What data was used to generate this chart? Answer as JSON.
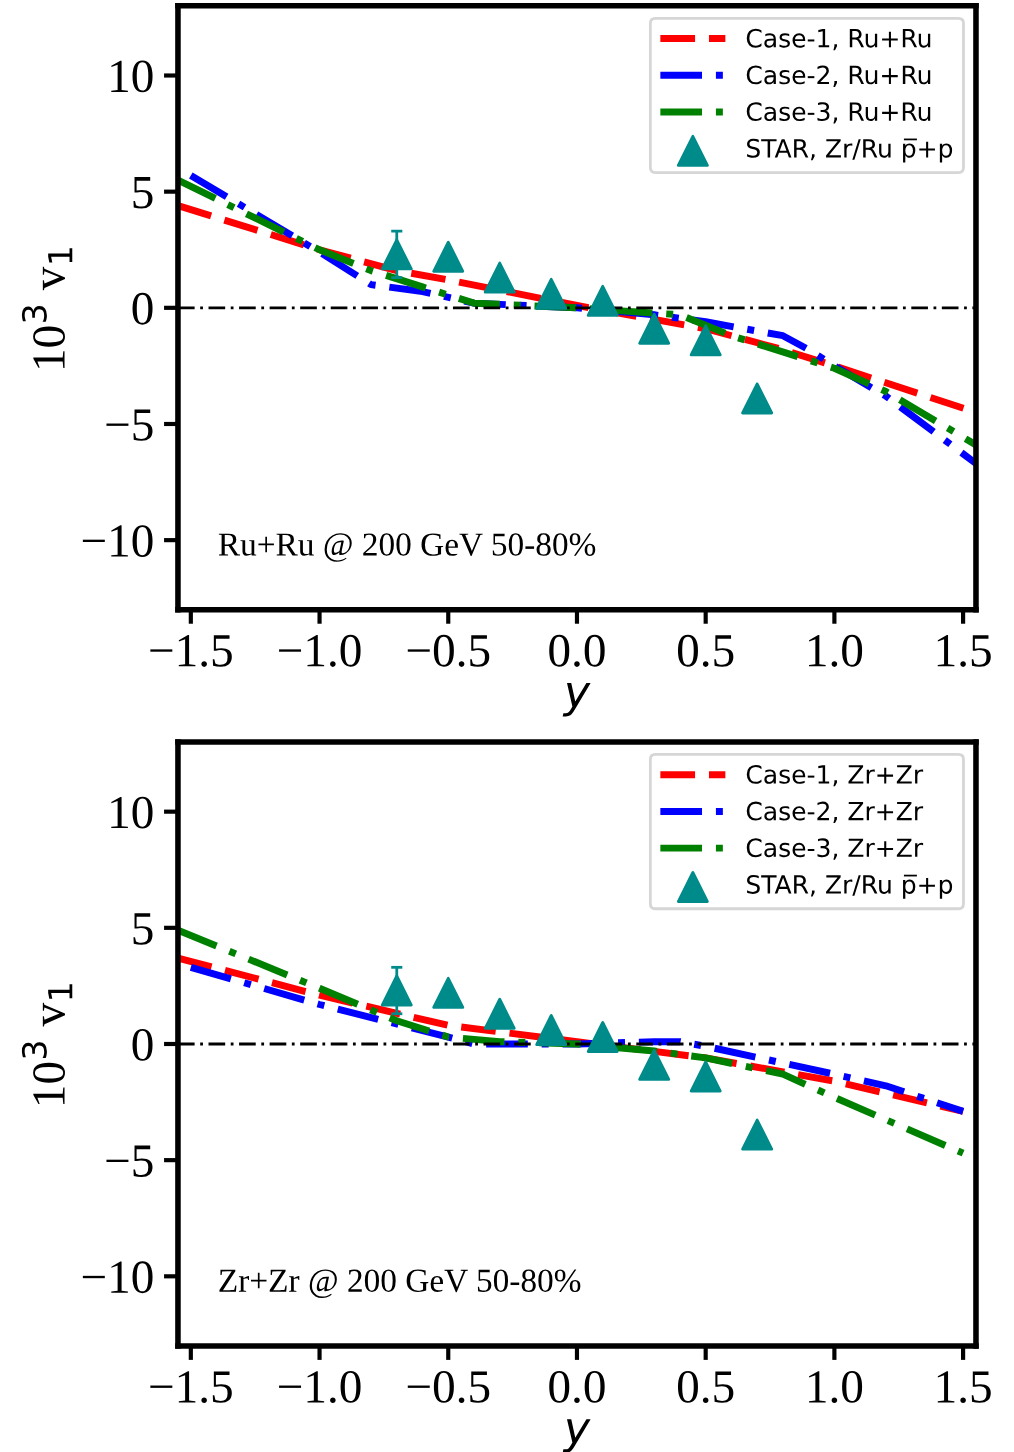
{
  "chart_data": [
    {
      "type": "line",
      "xlabel": "y",
      "ylabel": "10$^{3}$ v$_{1}$",
      "annotations": [
        "Ru+Ru @ 200 GeV 50-80%"
      ],
      "xlim": [
        -1.55,
        1.55
      ],
      "ylim": [
        -13,
        13
      ],
      "xticks": [
        {
          "value": -1.5,
          "label": "−1.5"
        },
        {
          "value": -1.0,
          "label": "−1.0"
        },
        {
          "value": -0.5,
          "label": "−0.5"
        },
        {
          "value": 0.0,
          "label": "0.0"
        },
        {
          "value": 0.5,
          "label": "0.5"
        },
        {
          "value": 1.0,
          "label": "1.0"
        },
        {
          "value": 1.5,
          "label": "1.5"
        }
      ],
      "yticks": [
        -10,
        -5,
        0,
        5,
        10
      ],
      "legend": "top right",
      "grid": false,
      "ref_lines": [
        {
          "axis": "y",
          "value": 0,
          "color": "#000000",
          "line_style": "dashdot"
        }
      ],
      "series": [
        {
          "name": "Case-1, Ru+Ru",
          "color": "#ff0000",
          "line_style": "dashed",
          "marker": "none",
          "x": [
            -1.55,
            -1.0,
            -0.7,
            -0.5,
            0.0,
            0.5,
            0.8,
            1.0,
            1.55
          ],
          "values": [
            4.4,
            2.5,
            1.6,
            1.2,
            0.1,
            -0.9,
            -1.8,
            -2.5,
            -4.5
          ]
        },
        {
          "name": "Case-2, Ru+Ru",
          "color": "#0000ff",
          "line_style": "dashdot",
          "marker": "none",
          "x": [
            -1.5,
            -1.0,
            -0.8,
            -0.6,
            -0.4,
            0.0,
            0.3,
            0.5,
            0.8,
            0.9,
            1.0,
            1.2,
            1.55
          ],
          "values": [
            5.7,
            2.4,
            1.0,
            0.7,
            0.2,
            0.0,
            -0.3,
            -0.6,
            -1.2,
            -1.8,
            -2.5,
            -3.8,
            -6.7
          ]
        },
        {
          "name": "Case-3, Ru+Ru",
          "color": "#008000",
          "line_style": "dashdot",
          "marker": "none",
          "x": [
            -1.55,
            -1.0,
            -0.8,
            -0.6,
            -0.4,
            -0.2,
            0.0,
            0.4,
            0.6,
            1.0,
            1.2,
            1.55
          ],
          "values": [
            5.5,
            2.5,
            1.6,
            0.9,
            0.2,
            0.1,
            0.0,
            -0.3,
            -1.2,
            -2.6,
            -3.6,
            -5.9
          ]
        },
        {
          "name": "STAR, Zr/Ru p̅+p",
          "type": "scatter",
          "color": "#008b8b",
          "marker": "triangle",
          "x": [
            -0.7,
            -0.5,
            -0.3,
            -0.1,
            0.1,
            0.3,
            0.5,
            0.7
          ],
          "values": [
            2.3,
            2.2,
            1.3,
            0.6,
            0.3,
            -0.9,
            -1.4,
            -3.9
          ],
          "errors": [
            1.0,
            null,
            null,
            null,
            null,
            null,
            null,
            null
          ]
        }
      ]
    },
    {
      "type": "line",
      "xlabel": "y",
      "ylabel": "10$^{3}$ v$_{1}$",
      "annotations": [
        "Zr+Zr @ 200 GeV 50-80%"
      ],
      "xlim": [
        -1.55,
        1.55
      ],
      "ylim": [
        -13,
        13
      ],
      "xticks": [
        {
          "value": -1.5,
          "label": "−1.5"
        },
        {
          "value": -1.0,
          "label": "−1.0"
        },
        {
          "value": -0.5,
          "label": "−0.5"
        },
        {
          "value": 0.0,
          "label": "0.0"
        },
        {
          "value": 0.5,
          "label": "0.5"
        },
        {
          "value": 1.0,
          "label": "1.0"
        },
        {
          "value": 1.5,
          "label": "1.5"
        }
      ],
      "yticks": [
        -10,
        -5,
        0,
        5,
        10
      ],
      "legend": "top right",
      "grid": false,
      "ref_lines": [
        {
          "axis": "y",
          "value": 0,
          "color": "#000000",
          "line_style": "dashdot"
        }
      ],
      "series": [
        {
          "name": "Case-1, Zr+Zr",
          "color": "#ff0000",
          "line_style": "dashed",
          "marker": "none",
          "x": [
            -1.55,
            -1.0,
            -0.5,
            0.0,
            0.5,
            1.0,
            1.5
          ],
          "values": [
            3.7,
            2.1,
            0.8,
            0.1,
            -0.6,
            -1.6,
            -2.9
          ]
        },
        {
          "name": "Case-2, Zr+Zr",
          "color": "#0000ff",
          "line_style": "dashdot",
          "marker": "none",
          "x": [
            -1.5,
            -1.0,
            -0.5,
            -0.4,
            0.0,
            0.3,
            0.4,
            0.5,
            1.0,
            1.2,
            1.5
          ],
          "values": [
            3.3,
            1.7,
            0.3,
            0.0,
            0.0,
            0.1,
            0.1,
            -0.1,
            -1.3,
            -1.8,
            -2.9
          ]
        },
        {
          "name": "Case-3, Zr+Zr",
          "color": "#008000",
          "line_style": "dashdot",
          "marker": "none",
          "x": [
            -1.55,
            -1.0,
            -0.7,
            -0.5,
            -0.3,
            0.0,
            0.3,
            0.5,
            0.8,
            1.0,
            1.5
          ],
          "values": [
            4.9,
            2.4,
            1.0,
            0.3,
            0.1,
            0.0,
            -0.3,
            -0.6,
            -1.3,
            -2.3,
            -4.7
          ]
        },
        {
          "name": "STAR, Zr/Ru p̅+p",
          "type": "scatter",
          "color": "#008b8b",
          "marker": "triangle",
          "x": [
            -0.7,
            -0.5,
            -0.3,
            -0.1,
            0.1,
            0.3,
            0.5,
            0.7
          ],
          "values": [
            2.3,
            2.2,
            1.3,
            0.6,
            0.3,
            -0.9,
            -1.4,
            -3.9
          ],
          "errors": [
            1.0,
            null,
            null,
            null,
            null,
            null,
            null,
            null
          ]
        }
      ]
    }
  ]
}
